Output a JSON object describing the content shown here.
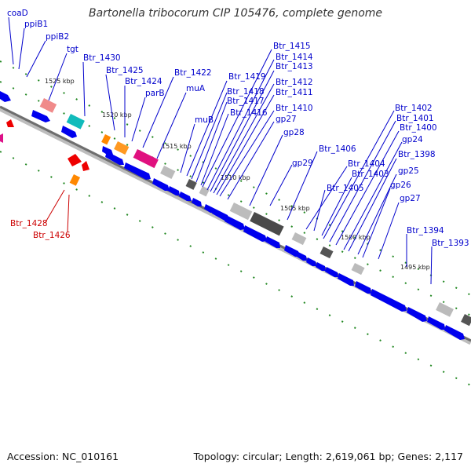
{
  "title": "Bartonella tribocorum CIP 105476, complete genome",
  "accession": "Accession: NC_010161",
  "summary": "Topology: circular; Length: 2,619,061 bp; Genes: 2,117",
  "colors": {
    "forward_label": "#0000cc",
    "reverse_label": "#cc0000",
    "backbone": "#808080",
    "dots": "#228822",
    "cds": "#0000ee"
  },
  "ticks": [
    "1525 kbp",
    "1520 kbp",
    "1515 kbp",
    "1510 kbp",
    "1505 kbp",
    "1500 kbp",
    "1495 kbp"
  ],
  "labels_forward": [
    "coaD",
    "ppiB1",
    "ppiB2",
    "tgt",
    "Btr_1430",
    "Btr_1425",
    "Btr_1424",
    "parB",
    "Btr_1422",
    "muA",
    "muB",
    "Btr_1419",
    "Btr_1418",
    "Btr_1417",
    "Btr_1416",
    "Btr_1415",
    "Btr_1414",
    "Btr_1413",
    "Btr_1412",
    "Btr_1411",
    "Btr_1410",
    "gp27",
    "gp28",
    "gp29",
    "Btr_1406",
    "Btr_1405",
    "Btr_1404",
    "Btr_1403",
    "Btr_1402",
    "Btr_1401",
    "Btr_1400",
    "gp24",
    "Btr_1398",
    "gp25",
    "gp26",
    "gp27",
    "Btr_1394",
    "Btr_1393"
  ],
  "labels_reverse": [
    "Btr_1428",
    "Btr_1426"
  ]
}
